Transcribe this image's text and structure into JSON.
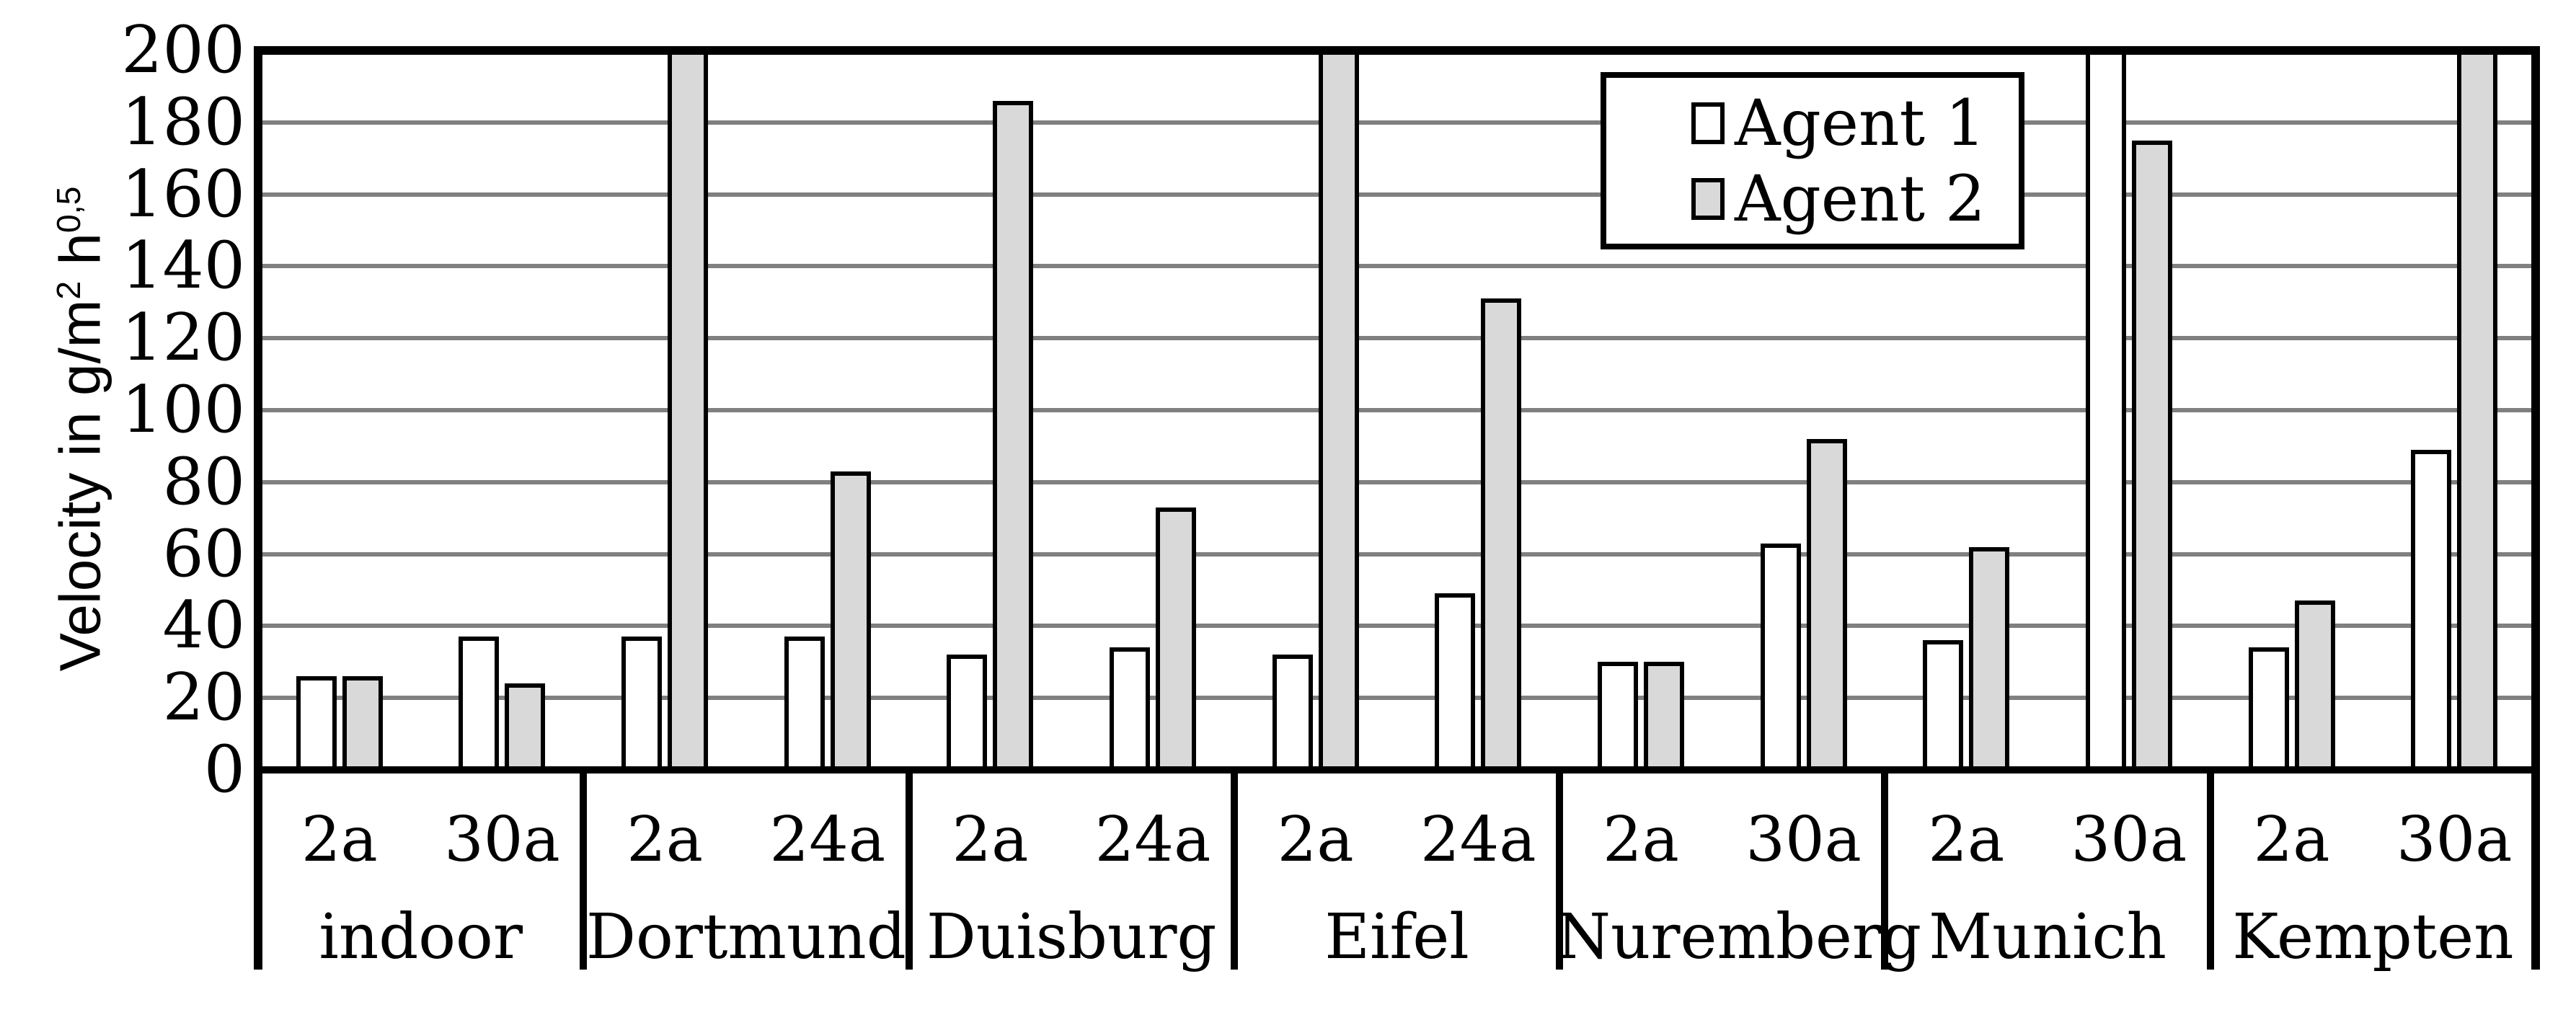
{
  "chart_data": {
    "type": "bar",
    "title": "",
    "ylabel": "Velocity in g/m² h^0,5",
    "ylabel_parts": [
      "Velocity in g/m",
      "2",
      " h",
      "0,5"
    ],
    "ylim": [
      0,
      200
    ],
    "ytick_step": 20,
    "yticks": [
      0,
      20,
      40,
      60,
      80,
      100,
      120,
      140,
      160,
      180,
      200
    ],
    "grid": "horizontal",
    "legend_position": "top-right-inside",
    "legend": [
      "Agent 1",
      "Agent 2"
    ],
    "series_names": [
      "Agent 1",
      "Agent 2"
    ],
    "note_clipped": ">200 means bar is clipped at the axis maximum of 200",
    "groups": [
      {
        "city": "indoor",
        "cols": [
          {
            "label": "2a",
            "agent1": 26,
            "agent2": 26
          },
          {
            "label": "30a",
            "agent1": 37,
            "agent2": 24
          }
        ]
      },
      {
        "city": "Dortmund",
        "cols": [
          {
            "label": "2a",
            "agent1": 37,
            "agent2": ">200"
          },
          {
            "label": "24a",
            "agent1": 37,
            "agent2": 83
          }
        ]
      },
      {
        "city": "Duisburg",
        "cols": [
          {
            "label": "2a",
            "agent1": 32,
            "agent2": 186
          },
          {
            "label": "24a",
            "agent1": 34,
            "agent2": 73
          }
        ]
      },
      {
        "city": "Eifel",
        "cols": [
          {
            "label": "2a",
            "agent1": 32,
            "agent2": ">200"
          },
          {
            "label": "24a",
            "agent1": 49,
            "agent2": 131
          }
        ]
      },
      {
        "city": "Nuremberg",
        "cols": [
          {
            "label": "2a",
            "agent1": 30,
            "agent2": 30
          },
          {
            "label": "30a",
            "agent1": 63,
            "agent2": 92
          }
        ]
      },
      {
        "city": "Munich",
        "cols": [
          {
            "label": "2a",
            "agent1": 36,
            "agent2": 62
          },
          {
            "label": "30a",
            "agent1": ">200",
            "agent2": 175
          }
        ]
      },
      {
        "city": "Kempten",
        "cols": [
          {
            "label": "2a",
            "agent1": 34,
            "agent2": 47
          },
          {
            "label": "30a",
            "agent1": 89,
            "agent2": ">200"
          }
        ]
      }
    ],
    "colors": {
      "agent1_fill": "#ffffff",
      "agent2_fill": "#d9d9d9",
      "outline": "#000000",
      "gridline": "#808080",
      "background": "#ffffff"
    }
  }
}
